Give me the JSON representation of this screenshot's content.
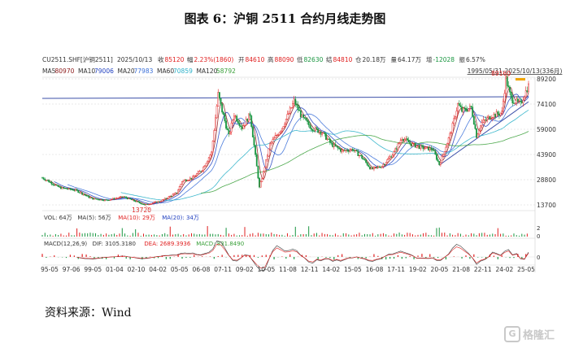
{
  "title": "图表 6：沪铜 2511 合约月线走势图",
  "source": "资料来源：Wind",
  "watermark": {
    "icon": "G",
    "text": "格隆汇"
  },
  "header": {
    "items": [
      {
        "text": "CU2511.SHF[沪铜2511]",
        "color": "#333333"
      },
      {
        "text": "2025/10/13",
        "color": "#333333"
      },
      {
        "text": "收",
        "color": "#333333"
      },
      {
        "text": "85120",
        "color": "#e02020"
      },
      {
        "text": "幅",
        "color": "#333333"
      },
      {
        "text": "2.23%(1860)",
        "color": "#e02020"
      },
      {
        "text": "开",
        "color": "#333333"
      },
      {
        "text": "84610",
        "color": "#e02020"
      },
      {
        "text": "高",
        "color": "#333333"
      },
      {
        "text": "88090",
        "color": "#e02020"
      },
      {
        "text": "低",
        "color": "#333333"
      },
      {
        "text": "82630",
        "color": "#1a9641"
      },
      {
        "text": "结",
        "color": "#333333"
      },
      {
        "text": "84810",
        "color": "#e02020"
      },
      {
        "text": "仓",
        "color": "#333333"
      },
      {
        "text": "20.18万",
        "color": "#333333"
      },
      {
        "text": "量",
        "color": "#333333"
      },
      {
        "text": "64.17万",
        "color": "#333333"
      },
      {
        "text": "增",
        "color": "#333333"
      },
      {
        "text": "-12028",
        "color": "#1a9641"
      },
      {
        "text": "振",
        "color": "#333333"
      },
      {
        "text": "6.57%",
        "color": "#333333"
      }
    ]
  },
  "ma_legend": [
    {
      "label": "MA5",
      "value": "80970",
      "color": "#8b1a1a"
    },
    {
      "label": "MA10",
      "value": "79006",
      "color": "#1f3fbf"
    },
    {
      "label": "MA20",
      "value": "77983",
      "color": "#3a6fd8"
    },
    {
      "label": "MA60",
      "value": "70859",
      "color": "#2ab0c8"
    },
    {
      "label": "MA120",
      "value": "58792",
      "color": "#3aa03a"
    }
  ],
  "range_label": "1995/05/31-2025/10/13(336月)",
  "vol_legend": [
    {
      "label": "VOL: 64万",
      "color": "#333333"
    },
    {
      "label": "MA(5): 56万",
      "color": "#333333"
    },
    {
      "label": "MA(10): 29万",
      "color": "#e02020"
    },
    {
      "label": "MA(20): 34万",
      "color": "#1f3fbf"
    }
  ],
  "macd_legend": [
    {
      "label": "MACD(12,26,9)",
      "color": "#333333"
    },
    {
      "label": "DIF: 3105.3180",
      "color": "#333333"
    },
    {
      "label": "DEA: 2689.3936",
      "color": "#e02020"
    },
    {
      "label": "MACD: 831.8490",
      "color": "#3aa03a"
    }
  ],
  "chart_data": {
    "type": "candlestick",
    "y_ticks": [
      89200,
      74100,
      59000,
      43900,
      28800,
      13700
    ],
    "ylim": [
      13700,
      89200
    ],
    "y_scale": "linear",
    "x_ticks": [
      "95-05",
      "97-06",
      "99-05",
      "01-04",
      "02-10",
      "04-02",
      "05-05",
      "06-08",
      "07-11",
      "09-02",
      "10-05",
      "11-08",
      "12-11",
      "14-02",
      "15-05",
      "16-08",
      "17-11",
      "19-02",
      "20-05",
      "21-08",
      "22-11",
      "24-02",
      "25-05"
    ],
    "vol_axis": [
      2,
      0
    ],
    "macd_axis": [
      0
    ],
    "annotations": [
      {
        "text": "89160",
        "x": "2024-05",
        "y": 89160
      },
      {
        "text": "13720",
        "x": "2001-10",
        "y": 13720
      }
    ],
    "trend_lines": [
      {
        "from": [
          "1995-05",
          77500
        ],
        "to": [
          "2025-10",
          78500
        ]
      },
      {
        "from": [
          "2020-03",
          37500
        ],
        "to": [
          "2025-10",
          75500
        ]
      }
    ],
    "price_path": [
      [
        "1995-05",
        30000
      ],
      [
        "1996-06",
        24000
      ],
      [
        "1997-06",
        22500
      ],
      [
        "1998-06",
        17500
      ],
      [
        "1999-05",
        16500
      ],
      [
        "2000-06",
        18500
      ],
      [
        "2001-10",
        13720
      ],
      [
        "2002-10",
        16000
      ],
      [
        "2003-10",
        21000
      ],
      [
        "2004-02",
        28000
      ],
      [
        "2004-10",
        30000
      ],
      [
        "2005-05",
        35000
      ],
      [
        "2005-12",
        45000
      ],
      [
        "2006-05",
        80000
      ],
      [
        "2006-08",
        70000
      ],
      [
        "2007-01",
        55000
      ],
      [
        "2007-05",
        68000
      ],
      [
        "2007-11",
        60000
      ],
      [
        "2008-05",
        68000
      ],
      [
        "2008-12",
        24000
      ],
      [
        "2009-02",
        30000
      ],
      [
        "2009-08",
        50000
      ],
      [
        "2010-05",
        60000
      ],
      [
        "2010-12",
        72000
      ],
      [
        "2011-02",
        76000
      ],
      [
        "2011-08",
        66000
      ],
      [
        "2012-03",
        60000
      ],
      [
        "2012-11",
        57000
      ],
      [
        "2013-06",
        50000
      ],
      [
        "2014-02",
        46000
      ],
      [
        "2014-10",
        47000
      ],
      [
        "2015-05",
        42000
      ],
      [
        "2015-12",
        35000
      ],
      [
        "2016-08",
        37000
      ],
      [
        "2017-05",
        45000
      ],
      [
        "2017-11",
        54000
      ],
      [
        "2018-06",
        50000
      ],
      [
        "2019-02",
        48000
      ],
      [
        "2019-10",
        47000
      ],
      [
        "2020-03",
        38000
      ],
      [
        "2020-05",
        42000
      ],
      [
        "2020-12",
        58000
      ],
      [
        "2021-05",
        74000
      ],
      [
        "2021-08",
        70000
      ],
      [
        "2022-03",
        72000
      ],
      [
        "2022-07",
        55000
      ],
      [
        "2022-11",
        63000
      ],
      [
        "2023-06",
        67000
      ],
      [
        "2024-02",
        69000
      ],
      [
        "2024-05",
        89160
      ],
      [
        "2024-09",
        77000
      ],
      [
        "2025-04",
        74000
      ],
      [
        "2025-07",
        80000
      ],
      [
        "2025-10",
        85120
      ]
    ]
  }
}
